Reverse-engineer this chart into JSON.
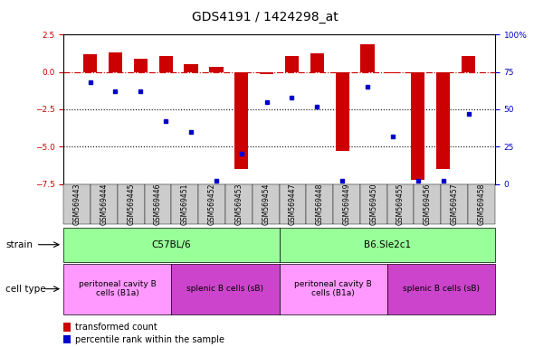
{
  "title": "GDS4191 / 1424298_at",
  "samples": [
    "GSM569443",
    "GSM569444",
    "GSM569445",
    "GSM569446",
    "GSM569451",
    "GSM569452",
    "GSM569453",
    "GSM569454",
    "GSM569447",
    "GSM569448",
    "GSM569449",
    "GSM569450",
    "GSM569455",
    "GSM569456",
    "GSM569457",
    "GSM569458"
  ],
  "bar_values": [
    1.2,
    1.3,
    0.9,
    1.1,
    0.55,
    0.35,
    -6.5,
    -0.15,
    1.1,
    1.25,
    -5.3,
    1.85,
    -0.05,
    -7.2,
    -6.5,
    1.1
  ],
  "dot_values": [
    68,
    62,
    62,
    42,
    35,
    2,
    20,
    55,
    58,
    52,
    2,
    65,
    32,
    2,
    2,
    47
  ],
  "ylim_left": [
    -7.5,
    2.5
  ],
  "ylim_right": [
    0,
    100
  ],
  "yticks_left": [
    -7.5,
    -5.0,
    -2.5,
    0.0,
    2.5
  ],
  "yticks_right": [
    0,
    25,
    50,
    75,
    100
  ],
  "hline_y": 0.0,
  "dotted_lines": [
    -2.5,
    -5.0
  ],
  "bar_color": "#cc0000",
  "dot_color": "#0000cc",
  "hline_color": "#cc0000",
  "strain_c57_label": "C57BL/6",
  "strain_b6_label": "B6.Sle2c1",
  "strain_color": "#99ff99",
  "cell_type_b1a_color": "#ff99ff",
  "cell_type_sb_color": "#cc44cc",
  "cell_type_b1a_label": "peritoneal cavity B\ncells (B1a)",
  "cell_type_sb_label": "splenic B cells (sB)",
  "strain_label": "strain",
  "cell_type_label": "cell type",
  "legend_bar_label": "transformed count",
  "legend_dot_label": "percentile rank within the sample",
  "xtick_box_color": "#cccccc",
  "title_fontsize": 10,
  "tick_fontsize": 6.5,
  "annotation_fontsize": 7.5,
  "legend_fontsize": 7
}
